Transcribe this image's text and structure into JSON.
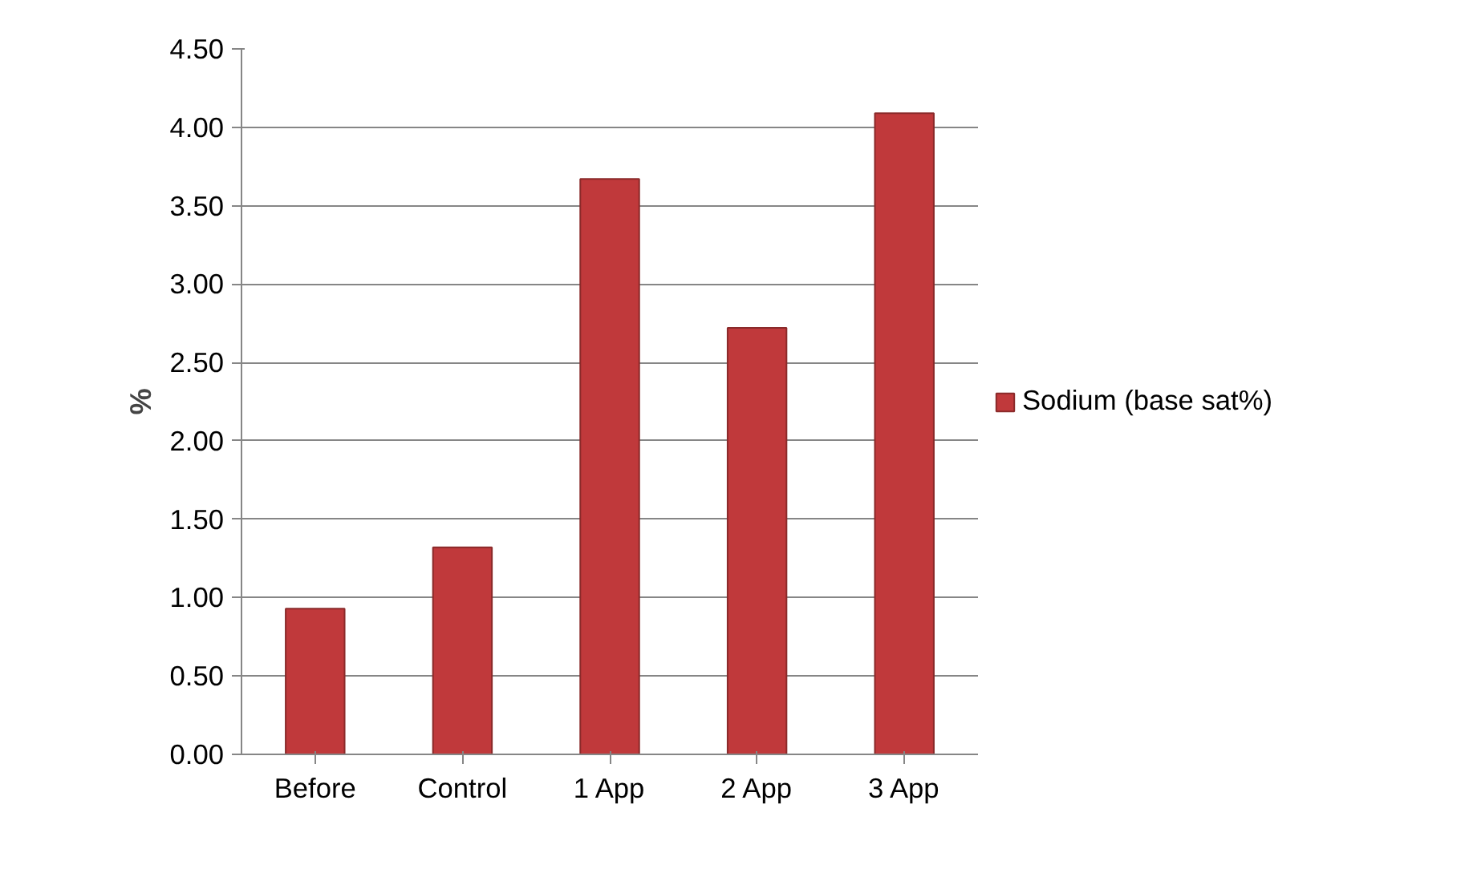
{
  "chart_data": {
    "type": "bar",
    "ylabel": "%",
    "categories": [
      "Before",
      "Control",
      "1 App",
      "2 App",
      "3 App"
    ],
    "series": [
      {
        "name": "Sodium (base sat%)",
        "color": "#c0393b",
        "values": [
          0.93,
          1.32,
          3.67,
          2.72,
          4.09
        ]
      }
    ],
    "ylim": [
      0,
      4.5
    ],
    "yticks": [
      {
        "value": 0,
        "label": "0.00"
      },
      {
        "value": 0.5,
        "label": "0.50"
      },
      {
        "value": 1,
        "label": "1.00"
      },
      {
        "value": 1.5,
        "label": "1.50"
      },
      {
        "value": 2,
        "label": "2.00"
      },
      {
        "value": 2.5,
        "label": "2.50"
      },
      {
        "value": 3,
        "label": "3.00"
      },
      {
        "value": 3.5,
        "label": "3.50"
      },
      {
        "value": 4,
        "label": "4.00"
      },
      {
        "value": 4.5,
        "label": "4.50"
      }
    ],
    "grid": "y",
    "legend": "right"
  }
}
